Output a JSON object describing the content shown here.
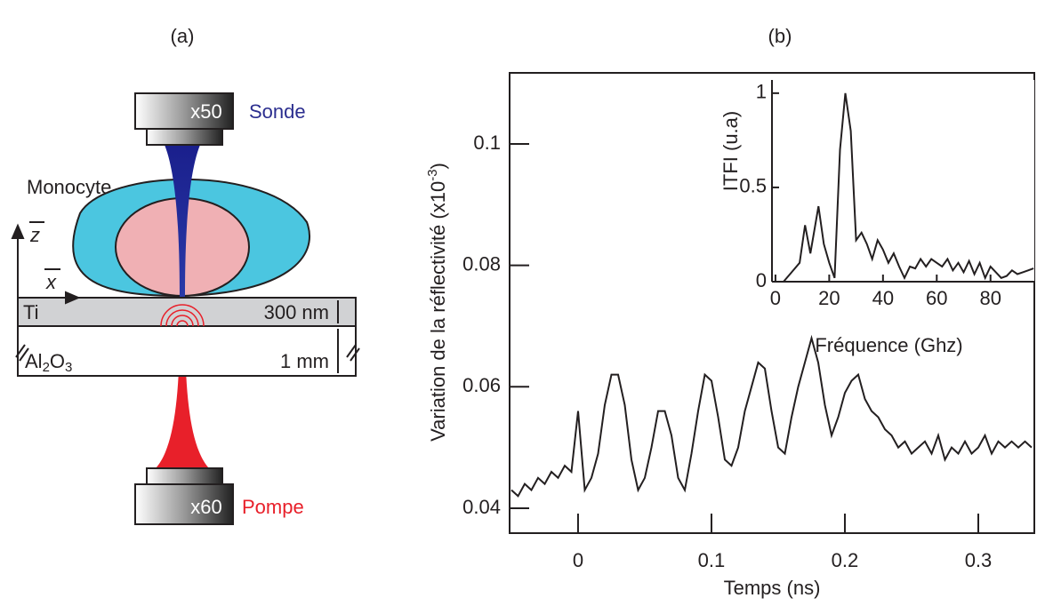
{
  "panels": {
    "a": "(a)",
    "b": "(b)"
  },
  "diagram": {
    "probe_mag": "x50",
    "probe": "Sonde",
    "pump_mag": "x60",
    "pump": "Pompe",
    "cell": "Monocyte",
    "z_axis": "z",
    "x_axis": "x",
    "layer_ti": "Ti",
    "ti_thickness": "300 nm",
    "substrate": [
      "Al",
      "2",
      "O",
      "3"
    ],
    "substrate_thickness": "1 mm"
  },
  "chart_data": [
    {
      "type": "line",
      "xlabel": "Temps (ns)",
      "ylabel": {
        "text": "Variation de la réflectivité (x10",
        "superscript": "-3",
        "close": ")"
      },
      "color": "#231f20",
      "xlim": [
        -0.0513,
        0.342
      ],
      "ylim": [
        0.0359,
        0.1117
      ],
      "xticks": [
        0,
        0.1,
        0.2,
        0.3
      ],
      "yticks": [
        0.04,
        0.06,
        0.08,
        0.1
      ],
      "x": [
        -0.05,
        -0.045,
        -0.04,
        -0.035,
        -0.03,
        -0.025,
        -0.02,
        -0.015,
        -0.01,
        -0.005,
        0,
        0.005,
        0.01,
        0.015,
        0.02,
        0.025,
        0.03,
        0.035,
        0.04,
        0.045,
        0.05,
        0.055,
        0.06,
        0.065,
        0.07,
        0.075,
        0.08,
        0.085,
        0.09,
        0.095,
        0.1,
        0.105,
        0.11,
        0.115,
        0.12,
        0.125,
        0.13,
        0.135,
        0.14,
        0.145,
        0.15,
        0.155,
        0.16,
        0.165,
        0.17,
        0.175,
        0.18,
        0.185,
        0.19,
        0.195,
        0.2,
        0.205,
        0.21,
        0.215,
        0.22,
        0.225,
        0.23,
        0.235,
        0.24,
        0.245,
        0.25,
        0.255,
        0.26,
        0.265,
        0.27,
        0.275,
        0.28,
        0.285,
        0.29,
        0.295,
        0.3,
        0.305,
        0.31,
        0.315,
        0.32,
        0.325,
        0.33,
        0.335,
        0.34
      ],
      "values": [
        0.043,
        0.042,
        0.044,
        0.043,
        0.045,
        0.044,
        0.046,
        0.045,
        0.047,
        0.046,
        0.056,
        0.043,
        0.045,
        0.049,
        0.057,
        0.062,
        0.062,
        0.057,
        0.048,
        0.043,
        0.045,
        0.05,
        0.056,
        0.056,
        0.052,
        0.045,
        0.043,
        0.049,
        0.056,
        0.062,
        0.061,
        0.055,
        0.048,
        0.047,
        0.05,
        0.056,
        0.06,
        0.064,
        0.063,
        0.056,
        0.05,
        0.049,
        0.055,
        0.06,
        0.064,
        0.068,
        0.064,
        0.057,
        0.052,
        0.055,
        0.059,
        0.061,
        0.062,
        0.058,
        0.056,
        0.055,
        0.053,
        0.052,
        0.05,
        0.051,
        0.049,
        0.05,
        0.051,
        0.049,
        0.052,
        0.048,
        0.05,
        0.049,
        0.051,
        0.049,
        0.05,
        0.052,
        0.049,
        0.051,
        0.05,
        0.051,
        0.05,
        0.051,
        0.05
      ]
    },
    {
      "type": "line",
      "xlabel": "Fréquence (Ghz)",
      "ylabel": "ITFI (u.a)",
      "color": "#231f20",
      "xlim": [
        -1.3,
        96.3
      ],
      "ylim": [
        0,
        1.07
      ],
      "xticks": [
        0,
        20,
        40,
        60,
        80
      ],
      "yticks": [
        0,
        0.5,
        1
      ],
      "x": [
        3,
        6,
        9,
        11,
        13,
        16,
        18,
        20,
        22,
        24,
        26,
        28,
        30,
        32,
        34,
        36,
        38,
        40,
        42,
        44,
        46,
        48,
        50,
        52,
        54,
        56,
        58,
        60,
        62,
        64,
        66,
        68,
        70,
        72,
        74,
        76,
        78,
        80,
        82,
        84,
        86,
        88,
        90,
        92,
        94,
        96
      ],
      "values": [
        0,
        0.05,
        0.1,
        0.3,
        0.15,
        0.4,
        0.2,
        0.1,
        0.02,
        0.7,
        1.0,
        0.8,
        0.22,
        0.26,
        0.2,
        0.12,
        0.22,
        0.17,
        0.1,
        0.15,
        0.08,
        0.02,
        0.08,
        0.07,
        0.12,
        0.08,
        0.12,
        0.1,
        0.08,
        0.12,
        0.06,
        0.1,
        0.05,
        0.11,
        0.04,
        0.1,
        0.02,
        0.08,
        0.05,
        0.02,
        0.03,
        0.06,
        0.04,
        0.05,
        0.06,
        0.07
      ]
    }
  ]
}
